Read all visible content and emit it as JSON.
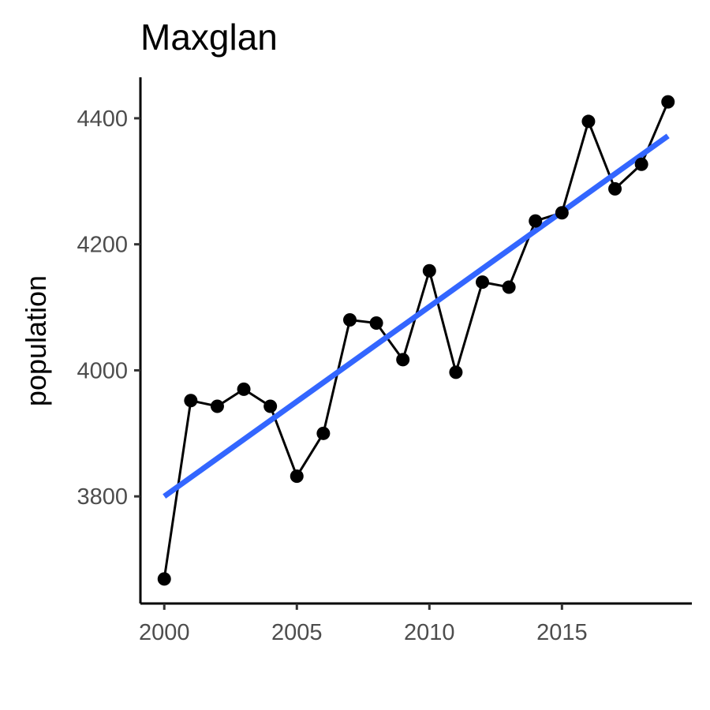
{
  "chart_data": {
    "type": "line",
    "title": "Maxglan",
    "xlabel": "",
    "ylabel": "population",
    "x": [
      2000,
      2001,
      2002,
      2003,
      2004,
      2005,
      2006,
      2007,
      2008,
      2009,
      2010,
      2011,
      2012,
      2013,
      2014,
      2015,
      2016,
      2017,
      2018,
      2019
    ],
    "series": [
      {
        "values": [
          3669,
          3952,
          3943,
          3970,
          3943,
          3832,
          3900,
          4080,
          4075,
          4017,
          4158,
          3997,
          4140,
          4132,
          4237,
          4250,
          4395,
          4288,
          4327,
          4426
        ]
      }
    ],
    "trend": {
      "x": [
        2000,
        2019
      ],
      "y": [
        3800,
        4372
      ],
      "color": "#3366ff"
    },
    "xlim": [
      1999.1,
      2019.9
    ],
    "ylim": [
      3630,
      4465
    ],
    "xticks": [
      2000,
      2005,
      2010,
      2015
    ],
    "yticks": [
      3800,
      4000,
      4200,
      4400
    ],
    "grid": false,
    "legend": "none"
  }
}
